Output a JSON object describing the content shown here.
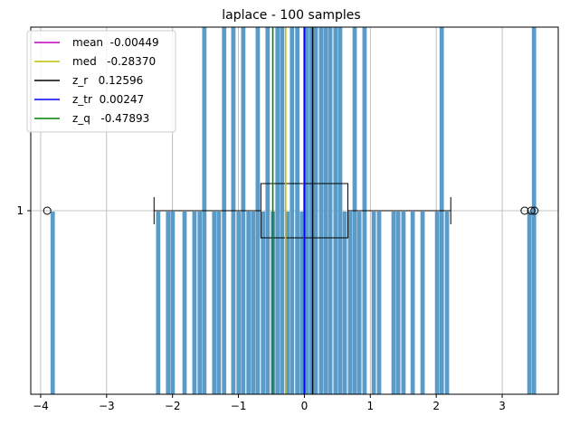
{
  "chart_data": {
    "type": "histogram",
    "title": "laplace - 100 samples",
    "xlabel": "",
    "ylabel": "",
    "xlim": [
      -4.15,
      3.85
    ],
    "grid": true,
    "x_ticks": [
      -4,
      -3,
      -2,
      -1,
      0,
      1,
      2,
      3
    ],
    "x_tick_labels": [
      "−4",
      "−3",
      "−2",
      "−1",
      "0",
      "1",
      "2",
      "3"
    ],
    "y_ticks": [
      "1"
    ],
    "histogram": {
      "color": "#5b9bc8",
      "bin_width": 0.0735,
      "bins_with_counts": [
        {
          "x": -3.85,
          "count": 1
        },
        {
          "x": -2.25,
          "count": 1
        },
        {
          "x": -2.1,
          "count": 1
        },
        {
          "x": -2.03,
          "count": 1
        },
        {
          "x": -1.85,
          "count": 1
        },
        {
          "x": -1.7,
          "count": 1
        },
        {
          "x": -1.62,
          "count": 1
        },
        {
          "x": -1.55,
          "count": 2
        },
        {
          "x": -1.4,
          "count": 1
        },
        {
          "x": -1.33,
          "count": 1
        },
        {
          "x": -1.25,
          "count": 2
        },
        {
          "x": -1.11,
          "count": 2
        },
        {
          "x": -1.03,
          "count": 1
        },
        {
          "x": -0.96,
          "count": 2
        },
        {
          "x": -0.88,
          "count": 1
        },
        {
          "x": -0.81,
          "count": 1
        },
        {
          "x": -0.74,
          "count": 2
        },
        {
          "x": -0.66,
          "count": 1
        },
        {
          "x": -0.59,
          "count": 2
        },
        {
          "x": -0.51,
          "count": 1
        },
        {
          "x": -0.44,
          "count": 2
        },
        {
          "x": -0.37,
          "count": 2
        },
        {
          "x": -0.29,
          "count": 1
        },
        {
          "x": -0.22,
          "count": 2
        },
        {
          "x": -0.14,
          "count": 2
        },
        {
          "x": -0.07,
          "count": 1
        },
        {
          "x": 0.0,
          "count": 2
        },
        {
          "x": 0.07,
          "count": 2
        },
        {
          "x": 0.14,
          "count": 2
        },
        {
          "x": 0.22,
          "count": 2
        },
        {
          "x": 0.29,
          "count": 2
        },
        {
          "x": 0.36,
          "count": 2
        },
        {
          "x": 0.44,
          "count": 2
        },
        {
          "x": 0.51,
          "count": 2
        },
        {
          "x": 0.58,
          "count": 1
        },
        {
          "x": 0.66,
          "count": 1
        },
        {
          "x": 0.73,
          "count": 2
        },
        {
          "x": 0.8,
          "count": 1
        },
        {
          "x": 0.88,
          "count": 2
        },
        {
          "x": 1.02,
          "count": 1
        },
        {
          "x": 1.1,
          "count": 1
        },
        {
          "x": 1.32,
          "count": 1
        },
        {
          "x": 1.39,
          "count": 1
        },
        {
          "x": 1.47,
          "count": 1
        },
        {
          "x": 1.61,
          "count": 1
        },
        {
          "x": 1.76,
          "count": 1
        },
        {
          "x": 1.98,
          "count": 1
        },
        {
          "x": 2.05,
          "count": 2
        },
        {
          "x": 2.13,
          "count": 1
        },
        {
          "x": 3.38,
          "count": 1
        },
        {
          "x": 3.45,
          "count": 2
        }
      ]
    },
    "boxplot": {
      "whisker_low": -2.28,
      "q1": -0.66,
      "median": -0.01,
      "q3": 0.66,
      "whisker_high": 2.22,
      "outliers": [
        -3.9,
        3.34,
        3.44,
        3.49
      ],
      "median_color": "#f1a340"
    },
    "vlines": [
      {
        "name": "mean",
        "value": -0.00449,
        "color": "#bf00bf"
      },
      {
        "name": "med",
        "value": -0.2837,
        "color": "#bfbf00"
      },
      {
        "name": "z_r",
        "value": 0.12596,
        "color": "#000000"
      },
      {
        "name": "z_tr",
        "value": 0.00247,
        "color": "#0000ff"
      },
      {
        "name": "z_q",
        "value": -0.47893,
        "color": "#008000"
      }
    ],
    "legend": {
      "position": "upper left",
      "entries": [
        {
          "label": "mean  -0.00449",
          "color": "#bf00bf"
        },
        {
          "label": "med   -0.28370",
          "color": "#bfbf00"
        },
        {
          "label": "z_r   0.12596",
          "color": "#000000"
        },
        {
          "label": "z_tr  0.00247",
          "color": "#0000ff"
        },
        {
          "label": "z_q   -0.47893",
          "color": "#008000"
        }
      ]
    }
  }
}
